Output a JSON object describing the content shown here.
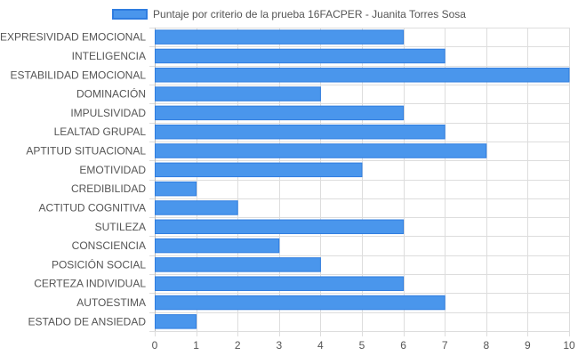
{
  "colors": {
    "bar_fill": "#4a96ec",
    "bar_stroke": "#2f7de0",
    "grid": "#dddddd",
    "axis": "#bdbdbd",
    "text": "#555555"
  },
  "chart_data": {
    "type": "bar",
    "orientation": "horizontal",
    "legend": "top-center",
    "grid": true,
    "xlim": [
      0,
      10
    ],
    "x_ticks": [
      0,
      1,
      2,
      3,
      4,
      5,
      6,
      7,
      8,
      9,
      10
    ],
    "categories": [
      "EXPRESIVIDAD EMOCIONAL",
      "INTELIGENCIA",
      "ESTABILIDAD EMOCIONAL",
      "DOMINACIÓN",
      "IMPULSIVIDAD",
      "LEALTAD GRUPAL",
      "APTITUD SITUACIONAL",
      "EMOTIVIDAD",
      "CREDIBILIDAD",
      "ACTITUD COGNITIVA",
      "SUTILEZA",
      "CONSCIENCIA",
      "POSICIÓN SOCIAL",
      "CERTEZA INDIVIDUAL",
      "AUTOESTIMA",
      "ESTADO DE ANSIEDAD"
    ],
    "series": [
      {
        "name": "Puntaje por criterio de la prueba 16FACPER - Juanita Torres Sosa",
        "values": [
          6,
          7,
          10,
          4,
          6,
          7,
          8,
          5,
          1,
          2,
          6,
          3,
          4,
          6,
          7,
          1
        ]
      }
    ]
  }
}
